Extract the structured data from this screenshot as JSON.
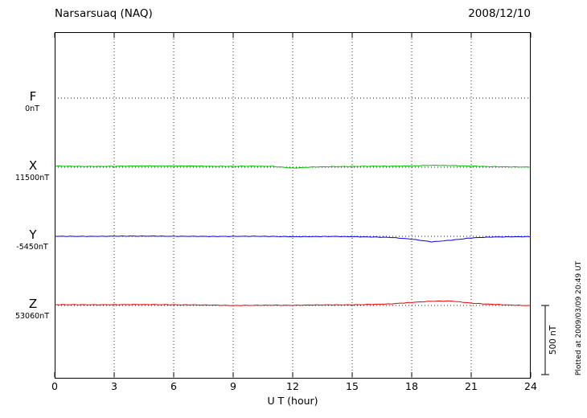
{
  "header": {
    "title": "Narsarsuaq (NAQ)",
    "date": "2008/12/10"
  },
  "axis": {
    "xlabel": "U T (hour)",
    "xlim": [
      0,
      24
    ],
    "ticks": [
      0,
      3,
      6,
      9,
      12,
      15,
      18,
      21,
      24
    ]
  },
  "scale_bar": {
    "label": "500 nT",
    "nT": 500
  },
  "footer_note": "Plotted at 2009/03/09 20:49 UT",
  "chart_data": {
    "type": "line",
    "title": "Narsarsuaq (NAQ)",
    "subtitle": "2008/12/10",
    "xlabel": "U T (hour)",
    "xlim": [
      0,
      24
    ],
    "grid": "dotted vertical lines every 3 hours, dotted horizontal baseline per component",
    "legend_position": "left-of-plot",
    "scale_nT_per_division": 500,
    "x_hours": [
      0,
      1,
      2,
      3,
      4,
      5,
      6,
      7,
      8,
      9,
      10,
      11,
      12,
      13,
      14,
      15,
      16,
      17,
      18,
      19,
      20,
      21,
      22,
      23,
      24
    ],
    "series": [
      {
        "name": "F",
        "baseline_label": "0nT",
        "color": "#FFA500",
        "has_trace": false,
        "values_nT": [
          0,
          0,
          0,
          0,
          0,
          0,
          0,
          0,
          0,
          0,
          0,
          0,
          0,
          0,
          0,
          0,
          0,
          0,
          0,
          0,
          0,
          0,
          0,
          0,
          0
        ]
      },
      {
        "name": "X",
        "baseline_label": "11500nT",
        "color": "#00C000",
        "has_trace": true,
        "values_nT": [
          8,
          6,
          5,
          6,
          8,
          9,
          8,
          8,
          6,
          6,
          8,
          6,
          -6,
          2,
          5,
          6,
          8,
          8,
          10,
          14,
          12,
          8,
          4,
          2,
          0
        ]
      },
      {
        "name": "Y",
        "baseline_label": "-5450nT",
        "color": "#0000EE",
        "has_trace": true,
        "values_nT": [
          0,
          -1,
          -1,
          0,
          1,
          1,
          0,
          0,
          -1,
          0,
          1,
          0,
          -2,
          -1,
          0,
          -2,
          -4,
          -8,
          -20,
          -40,
          -28,
          -12,
          -6,
          -4,
          -3
        ]
      },
      {
        "name": "Z",
        "baseline_label": "53060nT",
        "color": "#EE0000",
        "has_trace": true,
        "values_nT": [
          5,
          5,
          4,
          5,
          6,
          6,
          5,
          4,
          3,
          0,
          2,
          3,
          2,
          4,
          5,
          5,
          8,
          12,
          22,
          30,
          32,
          16,
          8,
          2,
          -2
        ]
      }
    ]
  }
}
